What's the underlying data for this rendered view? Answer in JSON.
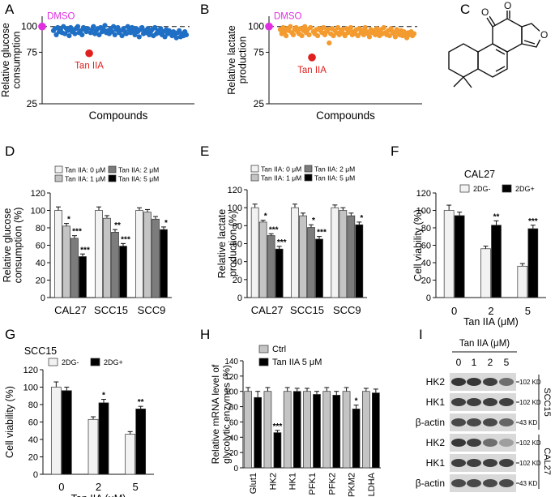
{
  "panels": {
    "A": "A",
    "B": "B",
    "C": "C",
    "D": "D",
    "E": "E",
    "F": "F",
    "G": "G",
    "H": "H",
    "I": "I"
  },
  "colors": {
    "blue": "#1f6fc5",
    "orange": "#f39b2f",
    "magenta": "#e12ee1",
    "red": "#e0201e",
    "c0": "#f2f2f2",
    "c1": "#c4c4c4",
    "c2": "#7c7c7c",
    "c3": "#000000"
  },
  "chart_data": [
    {
      "id": "A",
      "type": "scatter",
      "title": "",
      "xlabel": "Compounds",
      "ylabel": [
        "Relative glucose",
        "consumption"
      ],
      "ylim": [
        25,
        110
      ],
      "yticks": [
        25,
        75,
        100
      ],
      "dashed_reference": 100,
      "dmso": {
        "label": "DMSO",
        "value": 100
      },
      "highlight": {
        "label": "Tan IIA",
        "index": 25,
        "value": 74
      },
      "values": [
        96,
        98,
        92,
        99,
        95,
        97,
        94,
        100,
        93,
        98,
        96,
        91,
        99,
        95,
        97,
        93,
        98,
        100,
        94,
        96,
        92,
        99,
        97,
        95,
        98,
        74,
        94,
        97,
        100,
        93,
        96,
        98,
        92,
        99,
        95,
        97,
        101,
        94,
        96,
        93,
        98,
        95,
        100,
        92,
        97,
        99,
        94,
        96,
        91,
        98,
        95,
        93,
        100,
        97,
        94,
        99,
        96,
        92,
        98,
        95,
        90,
        97,
        99,
        93,
        96,
        94,
        98,
        92,
        95,
        97,
        91,
        99,
        93,
        96,
        94,
        98,
        92,
        95,
        90,
        97,
        93,
        96,
        94,
        91,
        95,
        92,
        89,
        94,
        96,
        90,
        93,
        91,
        95,
        92
      ]
    },
    {
      "id": "B",
      "type": "scatter",
      "title": "",
      "xlabel": "Compounds",
      "ylabel": [
        "Relative lactate",
        "production"
      ],
      "ylim": [
        25,
        110
      ],
      "yticks": [
        25,
        75,
        100
      ],
      "dashed_reference": 100,
      "dmso": {
        "label": "DMSO",
        "value": 100
      },
      "highlight": {
        "label": "Tan IIA",
        "index": 22,
        "value": 70
      },
      "values": [
        97,
        93,
        99,
        95,
        91,
        98,
        96,
        100,
        94,
        92,
        97,
        99,
        95,
        93,
        98,
        91,
        96,
        100,
        94,
        97,
        92,
        99,
        70,
        95,
        93,
        97,
        91,
        98,
        96,
        94,
        99,
        92,
        95,
        97,
        84,
        93,
        98,
        91,
        96,
        94,
        99,
        92,
        95,
        97,
        93,
        91,
        98,
        94,
        96,
        99,
        92,
        95,
        93,
        97,
        91,
        98,
        94,
        96,
        92,
        99,
        95,
        93,
        90,
        97,
        94,
        96,
        92,
        98,
        95,
        91,
        97,
        93,
        99,
        94,
        92,
        96,
        91,
        98,
        95,
        93,
        90,
        97,
        94,
        92,
        96,
        91,
        95,
        93,
        89,
        94,
        92,
        95,
        91,
        93
      ]
    },
    {
      "id": "D",
      "type": "bar",
      "title": "",
      "ylabel": [
        "Relative glucose",
        "consumption (%)"
      ],
      "ylim": [
        0,
        120
      ],
      "yticks": [
        0,
        20,
        40,
        60,
        80,
        100,
        120
      ],
      "categories": [
        "CAL27",
        "SCC15",
        "SCC9"
      ],
      "legend": [
        "Tan IIA: 0 μM",
        "Tan IIA: 2 μM",
        "Tan IIA: 1 μM",
        "Tan IIA: 5 μM"
      ],
      "series": [
        {
          "name": "Tan IIA: 0 μM",
          "values": [
            100,
            100,
            100
          ],
          "err": [
            4,
            4,
            3
          ],
          "sig": [
            "",
            "",
            ""
          ]
        },
        {
          "name": "Tan IIA: 1 μM",
          "values": [
            82,
            91,
            98
          ],
          "err": [
            3,
            3,
            3
          ],
          "sig": [
            "*",
            "",
            ""
          ]
        },
        {
          "name": "Tan IIA: 2 μM",
          "values": [
            68,
            75,
            90
          ],
          "err": [
            3,
            3,
            3
          ],
          "sig": [
            "***",
            "**",
            ""
          ]
        },
        {
          "name": "Tan IIA: 5 μM",
          "values": [
            47,
            59,
            78
          ],
          "err": [
            3,
            3,
            3
          ],
          "sig": [
            "***",
            "***",
            "*"
          ]
        }
      ]
    },
    {
      "id": "E",
      "type": "bar",
      "title": "",
      "ylabel": [
        "Relative lactate",
        "production (%)"
      ],
      "ylim": [
        0,
        120
      ],
      "yticks": [
        0,
        20,
        40,
        60,
        80,
        100,
        120
      ],
      "categories": [
        "CAL27",
        "SCC15",
        "SCC9"
      ],
      "legend": [
        "Tan IIA: 0 μM",
        "Tan IIA: 2 μM",
        "Tan IIA: 1 μM",
        "Tan IIA: 5 μM"
      ],
      "series": [
        {
          "name": "Tan IIA: 0 μM",
          "values": [
            100,
            100,
            100
          ],
          "err": [
            4,
            4,
            3
          ],
          "sig": [
            "",
            "",
            ""
          ]
        },
        {
          "name": "Tan IIA: 1 μM",
          "values": [
            84,
            91,
            97
          ],
          "err": [
            2,
            3,
            3
          ],
          "sig": [
            "*",
            "",
            ""
          ]
        },
        {
          "name": "Tan IIA: 2 μM",
          "values": [
            69,
            78,
            91
          ],
          "err": [
            2,
            3,
            3
          ],
          "sig": [
            "***",
            "*",
            ""
          ]
        },
        {
          "name": "Tan IIA: 5 μM",
          "values": [
            54,
            65,
            81
          ],
          "err": [
            3,
            3,
            3
          ],
          "sig": [
            "***",
            "***",
            "*"
          ]
        }
      ]
    },
    {
      "id": "F",
      "type": "bar",
      "title": "CAL27",
      "ylabel": [
        "Cell viability (%)"
      ],
      "xlabel": "Tan IIA (μM)",
      "ylim": [
        0,
        120
      ],
      "yticks": [
        0,
        20,
        40,
        60,
        80,
        100,
        120
      ],
      "categories": [
        "0",
        "2",
        "5"
      ],
      "legend": [
        "2DG-",
        "2DG+"
      ],
      "series": [
        {
          "name": "2DG-",
          "values": [
            100,
            56,
            36
          ],
          "err": [
            6,
            3,
            3
          ],
          "sig": [
            "",
            "",
            ""
          ]
        },
        {
          "name": "2DG+",
          "values": [
            94,
            83,
            79
          ],
          "err": [
            4,
            5,
            4
          ],
          "sig": [
            "",
            "**",
            "***"
          ]
        }
      ]
    },
    {
      "id": "G",
      "type": "bar",
      "title": "SCC15",
      "ylabel": [
        "Cell viability (%)"
      ],
      "xlabel": "Tan IIA (μM)",
      "ylim": [
        0,
        120
      ],
      "yticks": [
        0,
        20,
        40,
        60,
        80,
        100,
        120
      ],
      "categories": [
        "0",
        "2",
        "5"
      ],
      "legend": [
        "2DG-",
        "2DG+"
      ],
      "series": [
        {
          "name": "2DG-",
          "values": [
            100,
            63,
            46
          ],
          "err": [
            6,
            3,
            3
          ],
          "sig": [
            "",
            "",
            ""
          ]
        },
        {
          "name": "2DG+",
          "values": [
            96,
            82,
            75
          ],
          "err": [
            4,
            4,
            3
          ],
          "sig": [
            "",
            "*",
            "**"
          ]
        }
      ]
    },
    {
      "id": "H",
      "type": "bar",
      "title": "",
      "ylabel": [
        "Relative mRNA level of",
        "glycolytic enzymes (%)"
      ],
      "ylim": [
        0,
        140
      ],
      "yticks": [
        0,
        20,
        40,
        60,
        80,
        100,
        120,
        140
      ],
      "categories": [
        "Glut1",
        "HK2",
        "HK1",
        "PFK1",
        "PFK2",
        "PKM2",
        "LDHA"
      ],
      "legend": [
        "Ctrl",
        "Tan IIA 5 μM"
      ],
      "series": [
        {
          "name": "Ctrl",
          "values": [
            100,
            100,
            100,
            100,
            100,
            100,
            100
          ],
          "err": [
            5,
            5,
            5,
            4,
            5,
            5,
            4
          ],
          "sig": [
            "",
            "",
            "",
            "",
            "",
            "",
            ""
          ]
        },
        {
          "name": "Tan IIA 5 μM",
          "values": [
            92,
            46,
            100,
            96,
            95,
            77,
            98
          ],
          "err": [
            8,
            3,
            4,
            4,
            5,
            5,
            5
          ],
          "sig": [
            "",
            "***",
            "",
            "",
            "",
            "*",
            ""
          ]
        }
      ]
    }
  ],
  "blot": {
    "header": "Tan IIA (μM)",
    "lanes": [
      "0",
      "1",
      "2",
      "5"
    ],
    "rows": [
      {
        "label": "HK2",
        "kd": "102 KD",
        "intensities": [
          0.85,
          0.85,
          0.8,
          0.55
        ]
      },
      {
        "label": "HK1",
        "kd": "102 KD",
        "intensities": [
          0.8,
          0.8,
          0.8,
          0.8
        ]
      },
      {
        "label": "β-actin",
        "kd": "43 KD",
        "intensities": [
          0.75,
          0.75,
          0.75,
          0.6
        ]
      },
      {
        "label": "HK2",
        "kd": "102 KD",
        "intensities": [
          0.85,
          0.8,
          0.55,
          0.3
        ]
      },
      {
        "label": "HK1",
        "kd": "102 KD",
        "intensities": [
          0.8,
          0.8,
          0.8,
          0.8
        ]
      },
      {
        "label": "β-actin",
        "kd": "43 KD",
        "intensities": [
          0.75,
          0.75,
          0.75,
          0.75
        ]
      }
    ],
    "groups": [
      "SCC15",
      "CAL27"
    ]
  }
}
